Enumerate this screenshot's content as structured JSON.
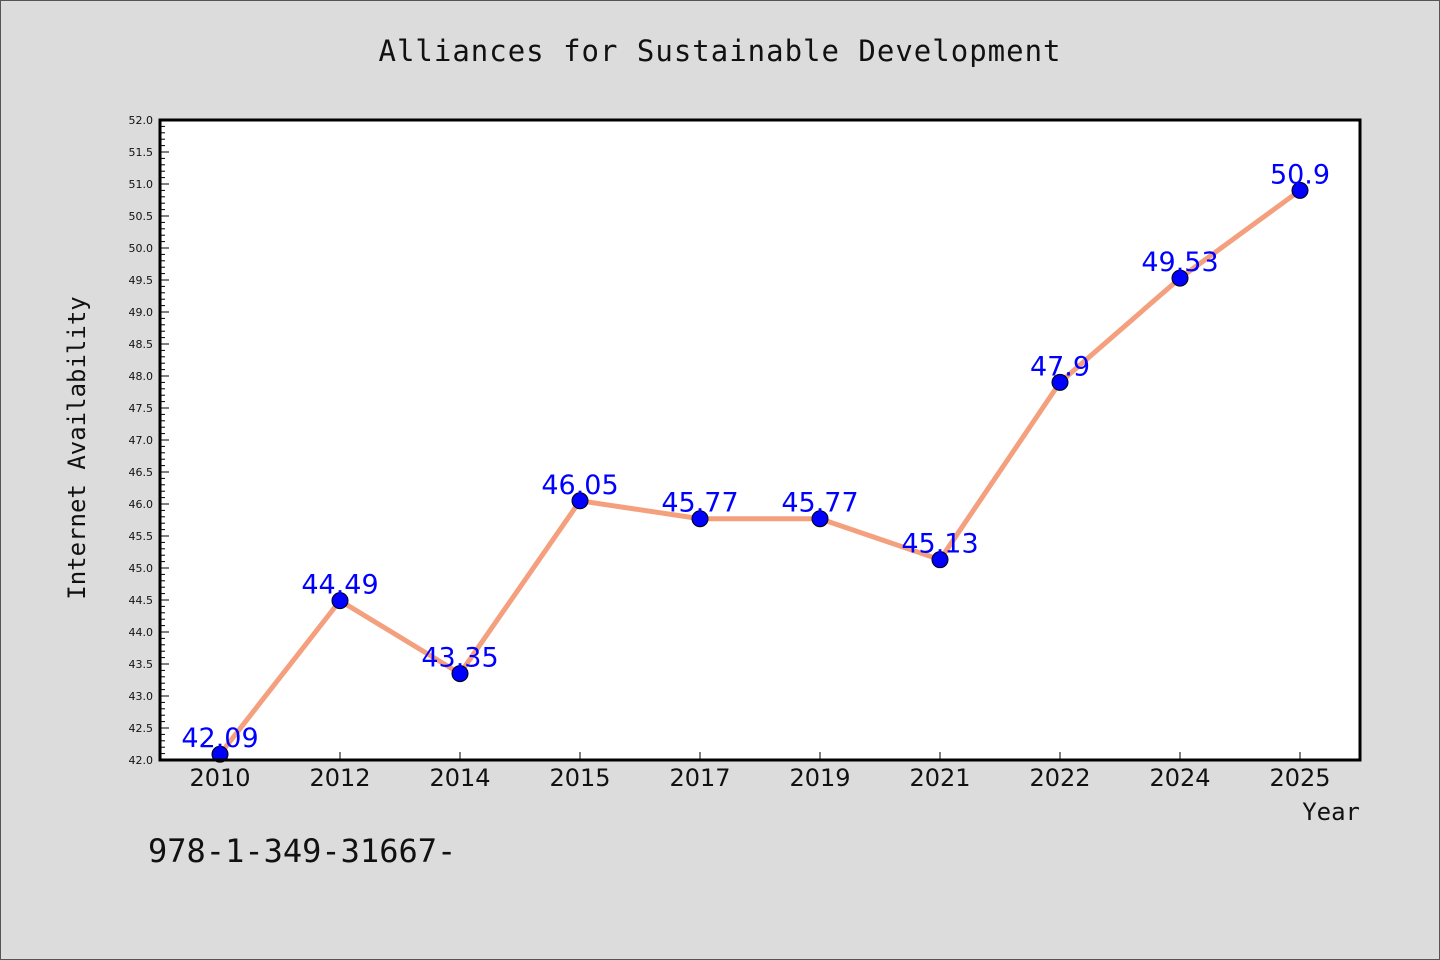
{
  "chart_data": {
    "type": "line",
    "title": "Alliances for Sustainable Development",
    "xlabel": "Year",
    "ylabel": "Internet Availability",
    "categories": [
      "2010",
      "2012",
      "2014",
      "2015",
      "2017",
      "2019",
      "2021",
      "2022",
      "2024",
      "2025"
    ],
    "values": [
      42.09,
      44.49,
      43.35,
      46.05,
      45.77,
      45.77,
      45.13,
      47.9,
      49.53,
      50.9
    ],
    "data_labels": [
      "42.09",
      "44.49",
      "43.35",
      "46.05",
      "45.77",
      "45.77",
      "45.13",
      "47.9",
      "49.53",
      "50.9"
    ],
    "ylim": [
      42.0,
      52.0
    ],
    "y_ticks": [
      "42.0",
      "42.5",
      "43.0",
      "43.5",
      "44.0",
      "44.5",
      "45.0",
      "45.5",
      "46.0",
      "46.5",
      "47.0",
      "47.5",
      "48.0",
      "48.5",
      "49.0",
      "49.5",
      "50.0",
      "50.5",
      "51.0",
      "51.5",
      "52.0"
    ],
    "grid": false,
    "colors": {
      "line": "#f4a07e",
      "marker": "#0000ff",
      "data_label": "#0000ff",
      "plot_background": "#ffffff",
      "figure_background": "#dcdcdc"
    }
  },
  "footer": {
    "text": "978-1-349-31667-"
  }
}
